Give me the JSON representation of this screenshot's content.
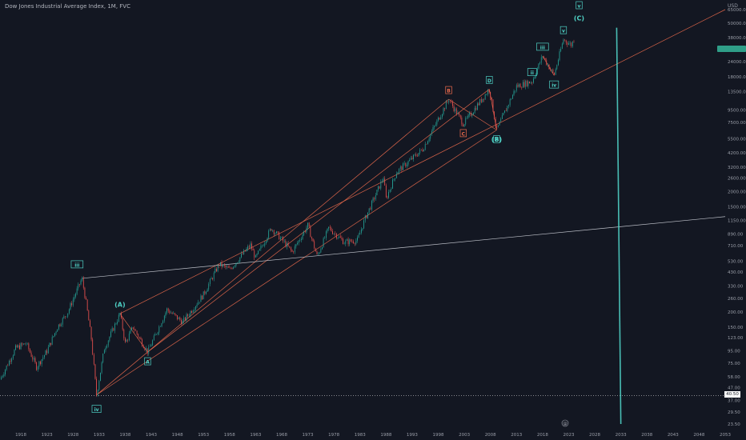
{
  "header": {
    "title": "Dow Jones Industrial Average Index, 1M, FVC",
    "currency": "USD"
  },
  "price_axis": {
    "last_price_badge_color": "#2f9e88",
    "hline_label": "40.50"
  },
  "event_icon": "@",
  "colors": {
    "background": "#131722",
    "candle_up": "#26a69a",
    "candle_down": "#ef5350",
    "trend_line": "#ef6c4d",
    "support_line": "#d1d4dc",
    "cycle_line": "#4fd1c5",
    "wave_label": "#4fd1c5",
    "wave_label_alt": "#ef6c4d"
  },
  "chart_data": {
    "type": "candlestick",
    "title": "Dow Jones Industrial Average Index, 1M, FVC",
    "y_scale": "log",
    "y_range": [
      23.5,
      65000
    ],
    "x_range": [
      1914,
      2053
    ],
    "x_ticks": [
      "1918",
      "1923",
      "1928",
      "1933",
      "1938",
      "1943",
      "1948",
      "1953",
      "1958",
      "1963",
      "1968",
      "1973",
      "1978",
      "1983",
      "1988",
      "1993",
      "1998",
      "2003",
      "2008",
      "2013",
      "2018",
      "2023",
      "2028",
      "2033",
      "2038",
      "2043",
      "2048",
      "2053"
    ],
    "y_ticks": [
      "65000.00",
      "46000.00",
      "33000.00",
      "24000.00",
      "16000.00",
      "11500.00",
      "8800.00",
      "6300.00",
      "4500.00",
      "3200.00",
      "2300.00",
      "1650.00",
      "1150.00",
      "810.00",
      "580.00",
      "410.00",
      "290.00",
      "205.00",
      "145.00",
      "105.00",
      "75.00",
      "53.00",
      "37.00",
      "26.50"
    ],
    "y_tick_labels_shown": [
      "65000.00",
      "50000.00",
      "38000.00",
      "24000.00",
      "18000.00",
      "13500.00",
      "9500.00",
      "7500.00",
      "5500.00",
      "4200.00",
      "3200.00",
      "2600.00",
      "2000.00",
      "1500.00",
      "1150.00",
      "890.00",
      "710.00",
      "530.00",
      "430.00",
      "330.00",
      "260.00",
      "200.00",
      "150.00",
      "123.00",
      "95.00",
      "75.00",
      "58.00",
      "47.00",
      "37.00",
      "29.50",
      "23.50"
    ],
    "price_path": [
      {
        "x": 1914.0,
        "y": 55
      },
      {
        "x": 1917.0,
        "y": 100
      },
      {
        "x": 1919.0,
        "y": 110
      },
      {
        "x": 1921.0,
        "y": 70
      },
      {
        "x": 1923.0,
        "y": 95
      },
      {
        "x": 1925.0,
        "y": 150
      },
      {
        "x": 1927.0,
        "y": 200
      },
      {
        "x": 1929.7,
        "y": 381
      },
      {
        "x": 1930.5,
        "y": 240
      },
      {
        "x": 1931.5,
        "y": 120
      },
      {
        "x": 1932.5,
        "y": 41
      },
      {
        "x": 1934.0,
        "y": 100
      },
      {
        "x": 1937.0,
        "y": 194
      },
      {
        "x": 1938.0,
        "y": 110
      },
      {
        "x": 1939.5,
        "y": 150
      },
      {
        "x": 1942.3,
        "y": 93
      },
      {
        "x": 1946.0,
        "y": 210
      },
      {
        "x": 1949.0,
        "y": 165
      },
      {
        "x": 1953.0,
        "y": 280
      },
      {
        "x": 1956.0,
        "y": 500
      },
      {
        "x": 1958.0,
        "y": 450
      },
      {
        "x": 1962.0,
        "y": 720
      },
      {
        "x": 1963.0,
        "y": 560
      },
      {
        "x": 1966.0,
        "y": 995
      },
      {
        "x": 1968.0,
        "y": 800
      },
      {
        "x": 1970.0,
        "y": 630
      },
      {
        "x": 1973.0,
        "y": 1050
      },
      {
        "x": 1974.8,
        "y": 577
      },
      {
        "x": 1977.0,
        "y": 1000
      },
      {
        "x": 1980.0,
        "y": 760
      },
      {
        "x": 1982.5,
        "y": 790
      },
      {
        "x": 1984.0,
        "y": 1200
      },
      {
        "x": 1987.6,
        "y": 2700
      },
      {
        "x": 1987.9,
        "y": 1700
      },
      {
        "x": 1990.0,
        "y": 2900
      },
      {
        "x": 1995.0,
        "y": 4500
      },
      {
        "x": 2000.0,
        "y": 11700
      },
      {
        "x": 2002.8,
        "y": 7300
      },
      {
        "x": 2007.8,
        "y": 14200
      },
      {
        "x": 2009.2,
        "y": 6500
      },
      {
        "x": 2013.0,
        "y": 15000
      },
      {
        "x": 2016.0,
        "y": 16500
      },
      {
        "x": 2018.0,
        "y": 26800
      },
      {
        "x": 2020.2,
        "y": 18500
      },
      {
        "x": 2022.0,
        "y": 36800
      },
      {
        "x": 2023.5,
        "y": 33000
      },
      {
        "x": 2024.2,
        "y": 38500
      }
    ],
    "wave_labels": [
      {
        "text": "iii",
        "x": 1929.7,
        "y": 381,
        "color": "#4fd1c5",
        "boxed": true
      },
      {
        "text": "iv",
        "x": 1932.5,
        "y": 41,
        "color": "#4fd1c5",
        "boxed": true
      },
      {
        "text": "v",
        "x": 2025.0,
        "y": 65000,
        "color": "#4fd1c5",
        "boxed": true
      },
      {
        "text": "(A)",
        "x": 1937.0,
        "y": 194,
        "color": "#4fd1c5",
        "boxed": false
      },
      {
        "text": "A",
        "x": 1942.3,
        "y": 93,
        "color": "#4fd1c5",
        "boxed": true
      },
      {
        "text": "(B)",
        "x": 2009.2,
        "y": 6500,
        "color": "#4fd1c5",
        "boxed": false
      },
      {
        "text": "(C)",
        "x": 2025.0,
        "y": 52000,
        "color": "#4fd1c5",
        "boxed": false
      },
      {
        "text": "B",
        "x": 2000.0,
        "y": 11700,
        "color": "#ef6c4d",
        "boxed": true
      },
      {
        "text": "C",
        "x": 2002.8,
        "y": 7300,
        "color": "#ef6c4d",
        "boxed": true
      },
      {
        "text": "D",
        "x": 2007.8,
        "y": 14200,
        "color": "#4fd1c5",
        "boxed": true
      },
      {
        "text": "E",
        "x": 2009.2,
        "y": 6500,
        "color": "#4fd1c5",
        "boxed": true
      },
      {
        "text": "iii",
        "x": 2018.0,
        "y": 26800,
        "color": "#4fd1c5",
        "boxed": true
      },
      {
        "text": "iv",
        "x": 2020.2,
        "y": 18500,
        "color": "#4fd1c5",
        "boxed": true
      },
      {
        "text": "ii",
        "x": 2016.0,
        "y": 16500,
        "color": "#4fd1c5",
        "boxed": true
      },
      {
        "text": "v",
        "x": 2022.0,
        "y": 36800,
        "color": "#4fd1c5",
        "boxed": true
      }
    ],
    "trend_lines": [
      {
        "from": {
          "x": 1932.5,
          "y": 41
        },
        "to": {
          "x": 2009.2,
          "y": 6500
        },
        "color": "#ef6c4d"
      },
      {
        "from": {
          "x": 1932.5,
          "y": 41
        },
        "to": {
          "x": 2000.0,
          "y": 11700
        },
        "color": "#ef6c4d"
      },
      {
        "from": {
          "x": 1937.0,
          "y": 194
        },
        "to": {
          "x": 2053.0,
          "y": 65000
        },
        "color": "#ef6c4d"
      },
      {
        "from": {
          "x": 1942.3,
          "y": 93
        },
        "to": {
          "x": 2007.8,
          "y": 14200
        },
        "color": "#ef6c4d"
      },
      {
        "from": {
          "x": 1937.0,
          "y": 194
        },
        "to": {
          "x": 1942.3,
          "y": 93
        },
        "color": "#ef6c4d"
      },
      {
        "from": {
          "x": 2000.0,
          "y": 11700
        },
        "to": {
          "x": 2009.2,
          "y": 6500
        },
        "color": "#ef6c4d"
      },
      {
        "from": {
          "x": 2009.2,
          "y": 6500
        },
        "to": {
          "x": 2007.8,
          "y": 14200
        },
        "color": "#ef6c4d"
      },
      {
        "from": {
          "x": 2018.0,
          "y": 26800
        },
        "to": {
          "x": 2020.2,
          "y": 18500
        },
        "color": "#ef6c4d"
      },
      {
        "from": {
          "x": 1929.7,
          "y": 381
        },
        "to": {
          "x": 2053.0,
          "y": 1240
        },
        "color": "#d1d4dc"
      },
      {
        "from": {
          "x": 2032.2,
          "y": 46000
        },
        "to": {
          "x": 2033.0,
          "y": 23.5
        },
        "color": "#4fd1c5"
      }
    ],
    "horizontal_line": {
      "y": 40.5,
      "style": "dotted",
      "color": "#ffffff"
    }
  }
}
